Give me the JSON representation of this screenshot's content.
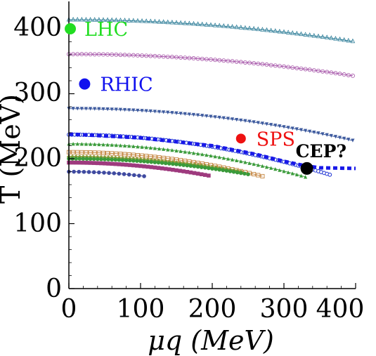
{
  "chart_data": {
    "type": "scatter",
    "xlabel": "μq (MeV)",
    "ylabel": "T (MeV)",
    "xlim": [
      0,
      400
    ],
    "ylim": [
      0,
      440
    ],
    "x_ticks": [
      "0",
      "100",
      "200",
      "300",
      "400"
    ],
    "y_ticks": [
      "0",
      "100",
      "200",
      "300",
      "400"
    ],
    "grid": false,
    "legend": "none",
    "series": [
      {
        "marker": "triangle-open",
        "color": "#2a7b96",
        "x0": 0,
        "x1": 400,
        "T0": 414,
        "T1": 380,
        "step": 6
      },
      {
        "marker": "circle-open",
        "color": "#a553a8",
        "x0": 0,
        "x1": 400,
        "T0": 361,
        "T1": 327,
        "step": 6
      },
      {
        "marker": "triangle-down",
        "color": "#3d5a9e",
        "x0": 0,
        "x1": 400,
        "T0": 277,
        "T1": 227,
        "step": 6
      },
      {
        "marker": "blue-band",
        "color": "#2b3fd6",
        "x0": 0,
        "x1": 365,
        "T0": 237,
        "T1": 175,
        "step": 4
      },
      {
        "marker": "triangle",
        "color": "#3b9b3b",
        "x0": 0,
        "x1": 330,
        "T0": 223,
        "T1": 172,
        "step": 6
      },
      {
        "marker": "square-open",
        "color": "#c48540",
        "x0": 0,
        "x1": 270,
        "T0": 210,
        "T1": 173,
        "step": 6
      },
      {
        "marker": "diamond",
        "color": "#8a9b3a",
        "x0": 0,
        "x1": 240,
        "T0": 203,
        "T1": 180,
        "step": 5
      },
      {
        "marker": "circle",
        "color": "#3a9a3a",
        "x0": 0,
        "x1": 250,
        "T0": 200,
        "T1": 176,
        "step": 5
      },
      {
        "marker": "square",
        "color": "#9e3a7e",
        "x0": 0,
        "x1": 195,
        "T0": 194,
        "T1": 174,
        "step": 5
      },
      {
        "marker": "circle",
        "color": "#3f4aa0",
        "x0": 0,
        "x1": 105,
        "T0": 180,
        "T1": 173,
        "step": 7
      }
    ],
    "freeze_out_line": {
      "color": "#1818e8",
      "points": [
        [
          0,
          238
        ],
        [
          100,
          232
        ],
        [
          200,
          220
        ],
        [
          260,
          207
        ],
        [
          300,
          196
        ],
        [
          330,
          189
        ],
        [
          350,
          186
        ],
        [
          400,
          185
        ]
      ]
    },
    "points": [
      {
        "label": "LHC",
        "x": 2,
        "y": 400,
        "color": "#22dd22"
      },
      {
        "label": "RHIC",
        "x": 22,
        "y": 315,
        "color": "#1111ee"
      },
      {
        "label": "SPS",
        "x": 240,
        "y": 231,
        "color": "#ee1111"
      },
      {
        "label": "CEP?",
        "x": 332,
        "y": 185,
        "color": "#000000"
      }
    ]
  }
}
